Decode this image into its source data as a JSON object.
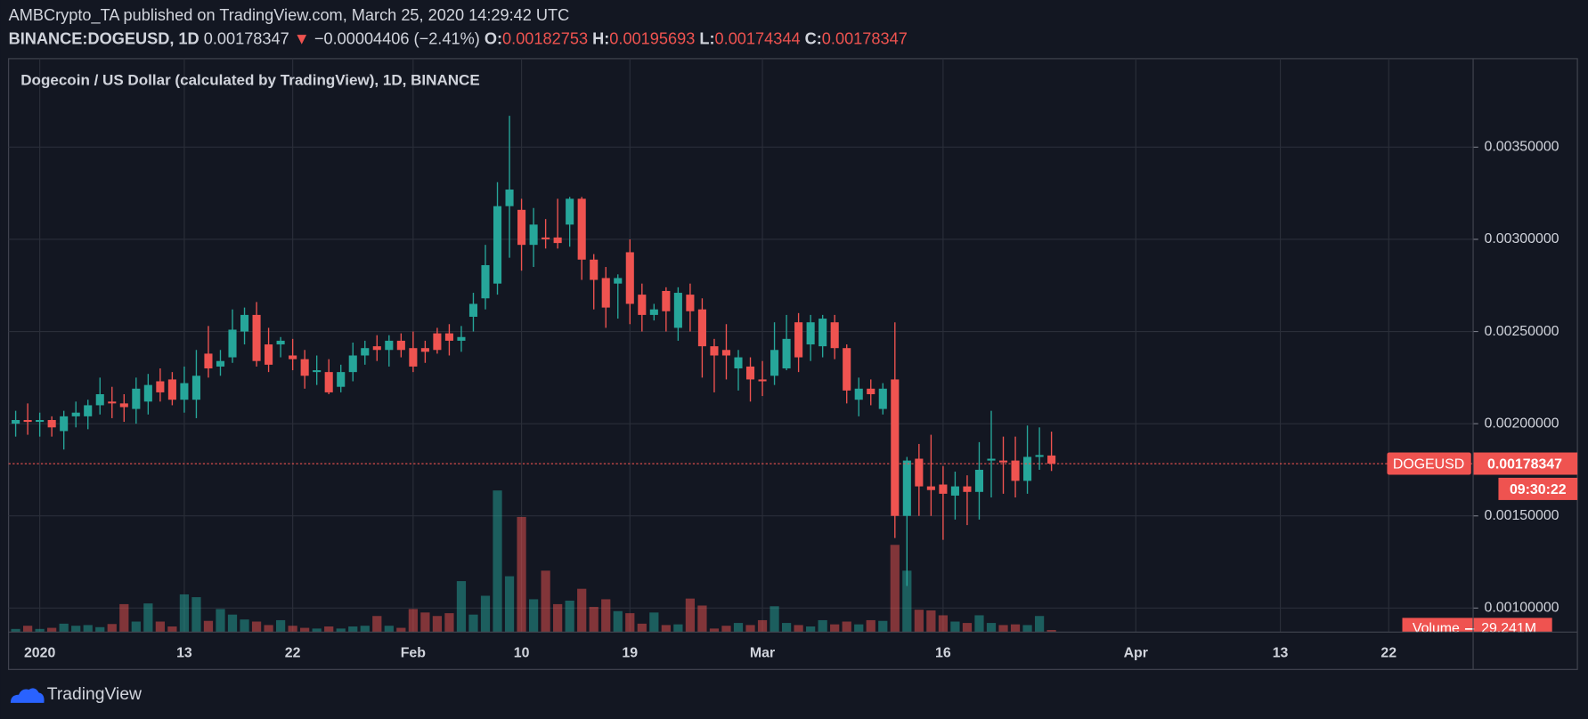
{
  "header": {
    "publisher": "AMBCrypto_TA published on TradingView.com, March 25, 2020 14:29:42 UTC",
    "symbol": "BINANCE:DOGEUSD, 1D",
    "arrow": "▼",
    "change": "−0.00004406 (−2.41%)",
    "o_label": "O:",
    "h_label": "H:",
    "l_label": "L:",
    "c_label": "C:"
  },
  "chart_data": {
    "type": "candlestick",
    "title": "Dogecoin / US Dollar (calculated by TradingView), 1D, BINANCE",
    "categories": [
      null,
      null,
      "2020",
      null,
      null,
      null,
      null,
      null,
      null,
      null,
      null,
      null,
      null,
      null,
      "13",
      null,
      null,
      null,
      null,
      null,
      null,
      null,
      null,
      "22",
      null,
      null,
      null,
      null,
      null,
      null,
      null,
      null,
      null,
      "Feb",
      null,
      null,
      null,
      null,
      null,
      null,
      null,
      null,
      "10",
      null,
      null,
      null,
      null,
      null,
      null,
      null,
      null,
      "19",
      null,
      null,
      null,
      null,
      null,
      null,
      null,
      null,
      null,
      null,
      "Mar",
      null,
      null,
      null,
      null,
      null,
      null,
      null,
      null,
      null,
      null,
      null,
      null,
      null,
      null,
      "16",
      null,
      null,
      null,
      null,
      null,
      null,
      null,
      null,
      null,
      null,
      null,
      null,
      null,
      null,
      null,
      "Apr",
      null,
      null,
      null,
      null,
      null,
      null,
      null,
      null,
      null,
      null,
      null,
      "13",
      null,
      null,
      null,
      null,
      null,
      null,
      null,
      null,
      "22",
      null,
      null,
      null,
      null,
      null,
      null
    ],
    "open": [
      0.002,
      0.00202,
      0.00201,
      0.00202,
      0.00196,
      0.00204,
      0.00204,
      0.0021,
      0.00212,
      0.00211,
      0.00208,
      0.00212,
      0.00223,
      0.00224,
      0.00213,
      0.00213,
      0.00238,
      0.00231,
      0.00236,
      0.0025,
      0.00259,
      0.00243,
      0.00243,
      0.00237,
      0.00235,
      0.00228,
      0.00228,
      0.0022,
      0.00228,
      0.00237,
      0.00242,
      0.0024,
      0.00245,
      0.00241,
      0.00241,
      0.00249,
      0.00249,
      0.00245,
      0.00258,
      0.00268,
      0.00276,
      0.00318,
      0.00316,
      0.00297,
      0.00301,
      0.00301,
      0.00308,
      0.00322,
      0.00289,
      0.00279,
      0.00276,
      0.00293,
      0.0027,
      0.00259,
      0.00272,
      0.00252,
      0.0027,
      0.00262,
      0.00242,
      0.0024,
      0.0023,
      0.00231,
      0.00224,
      0.00226,
      0.0023,
      0.00255,
      0.00243,
      0.00242,
      0.00255,
      0.00241,
      0.00213,
      0.00219,
      0.00208,
      0.00224,
      0.0015,
      0.00181,
      0.00166,
      0.00167,
      0.00161,
      0.00166,
      0.00163,
      0.0018,
      0.0018,
      0.0018,
      0.00169,
      0.00182,
      0.00182753,
      null,
      null,
      null,
      null,
      null,
      null,
      null,
      null,
      null,
      null,
      null,
      null,
      null,
      null,
      null,
      null,
      null,
      null,
      null,
      null,
      null,
      null,
      null,
      null,
      null,
      null,
      null,
      null,
      null,
      null,
      null,
      null,
      null,
      null
    ],
    "high": [
      0.00207,
      0.00211,
      0.00206,
      0.00204,
      0.00207,
      0.00212,
      0.00213,
      0.00225,
      0.0022,
      0.00216,
      0.00225,
      0.00227,
      0.0023,
      0.00228,
      0.00231,
      0.0024,
      0.00253,
      0.0024,
      0.00262,
      0.00263,
      0.00266,
      0.00252,
      0.00247,
      0.00246,
      0.0024,
      0.00237,
      0.00235,
      0.00232,
      0.00244,
      0.00245,
      0.00248,
      0.00248,
      0.00249,
      0.0025,
      0.00245,
      0.00252,
      0.00254,
      0.00253,
      0.00271,
      0.00297,
      0.00331,
      0.00367,
      0.00322,
      0.00317,
      0.00311,
      0.00322,
      0.00323,
      0.00323,
      0.00292,
      0.00285,
      0.00281,
      0.003,
      0.00276,
      0.00265,
      0.00274,
      0.00274,
      0.00276,
      0.00268,
      0.00246,
      0.00254,
      0.0024,
      0.00236,
      0.00234,
      0.00255,
      0.00259,
      0.0026,
      0.00259,
      0.00259,
      0.00259,
      0.00243,
      0.00225,
      0.00224,
      0.00222,
      0.00255,
      0.00182,
      0.00189,
      0.00194,
      0.00177,
      0.00174,
      0.00172,
      0.0019,
      0.00207,
      0.00193,
      0.00193,
      0.00199,
      0.00198,
      0.00195693,
      null,
      null,
      null,
      null,
      null,
      null,
      null,
      null,
      null,
      null,
      null,
      null,
      null,
      null,
      null,
      null,
      null,
      null,
      null,
      null,
      null,
      null,
      null,
      null,
      null,
      null,
      null,
      null,
      null,
      null,
      null,
      null,
      null,
      null
    ],
    "low": [
      0.00193,
      0.00194,
      0.00193,
      0.00193,
      0.00186,
      0.00198,
      0.00197,
      0.00205,
      0.00203,
      0.00201,
      0.002,
      0.00205,
      0.00212,
      0.0021,
      0.00206,
      0.00203,
      0.00225,
      0.00226,
      0.00233,
      0.00243,
      0.00231,
      0.00228,
      0.00236,
      0.00229,
      0.00219,
      0.00221,
      0.00216,
      0.00217,
      0.00223,
      0.00232,
      0.00234,
      0.00231,
      0.00236,
      0.00228,
      0.00233,
      0.00238,
      0.00237,
      0.00239,
      0.0025,
      0.00262,
      0.0027,
      0.0029,
      0.00283,
      0.00285,
      0.00295,
      0.00295,
      0.00296,
      0.00278,
      0.00262,
      0.00252,
      0.00257,
      0.00254,
      0.0025,
      0.00256,
      0.0025,
      0.00245,
      0.0025,
      0.00225,
      0.00217,
      0.00224,
      0.00218,
      0.00212,
      0.00215,
      0.00221,
      0.00229,
      0.00228,
      0.00234,
      0.00236,
      0.00235,
      0.00211,
      0.00204,
      0.0021,
      0.00205,
      0.00138,
      0.00112,
      0.0015,
      0.0015,
      0.00137,
      0.00148,
      0.00145,
      0.00148,
      0.0016,
      0.00162,
      0.0016,
      0.00162,
      0.00175,
      0.00174344,
      null,
      null,
      null,
      null,
      null,
      null,
      null,
      null,
      null,
      null,
      null,
      null,
      null,
      null,
      null,
      null,
      null,
      null,
      null,
      null,
      null,
      null,
      null,
      null,
      null,
      null,
      null,
      null,
      null,
      null,
      null,
      null,
      null,
      null
    ],
    "close": [
      0.00202,
      0.00201,
      0.00202,
      0.00198,
      0.00204,
      0.00206,
      0.0021,
      0.00216,
      0.00211,
      0.00209,
      0.00219,
      0.00221,
      0.00217,
      0.00213,
      0.00222,
      0.00226,
      0.0023,
      0.00234,
      0.00251,
      0.00259,
      0.00234,
      0.00232,
      0.00245,
      0.00235,
      0.00226,
      0.00229,
      0.00217,
      0.00228,
      0.00237,
      0.00241,
      0.0024,
      0.00245,
      0.0024,
      0.00231,
      0.00239,
      0.0024,
      0.00245,
      0.00247,
      0.00265,
      0.00286,
      0.00318,
      0.00327,
      0.00297,
      0.00308,
      0.003,
      0.00298,
      0.00322,
      0.00289,
      0.00278,
      0.00263,
      0.00279,
      0.00265,
      0.00259,
      0.00262,
      0.00261,
      0.00271,
      0.00261,
      0.00242,
      0.00237,
      0.00237,
      0.00236,
      0.00224,
      0.00223,
      0.0024,
      0.00246,
      0.00236,
      0.00255,
      0.00257,
      0.00241,
      0.00218,
      0.00219,
      0.00216,
      0.00219,
      0.0015,
      0.0018,
      0.00166,
      0.00164,
      0.00162,
      0.00166,
      0.00163,
      0.00175,
      0.00181,
      0.00179,
      0.00169,
      0.00182,
      0.00183,
      0.00178347,
      null,
      null,
      null,
      null,
      null,
      null,
      null,
      null,
      null,
      null,
      null,
      null,
      null,
      null,
      null,
      null,
      null,
      null,
      null,
      null,
      null,
      null,
      null,
      null,
      null,
      null,
      null,
      null,
      null,
      null,
      null,
      null,
      null,
      null
    ],
    "volume": [
      44,
      90,
      44,
      60,
      120,
      90,
      100,
      70,
      115,
      400,
      150,
      410,
      150,
      80,
      540,
      500,
      160,
      330,
      250,
      180,
      150,
      100,
      170,
      90,
      60,
      50,
      80,
      50,
      80,
      90,
      230,
      90,
      60,
      330,
      280,
      230,
      270,
      730,
      250,
      520,
      2030,
      800,
      1650,
      470,
      880,
      400,
      450,
      620,
      360,
      470,
      300,
      270,
      120,
      280,
      100,
      110,
      480,
      380,
      50,
      90,
      130,
      100,
      170,
      370,
      130,
      100,
      80,
      170,
      110,
      150,
      110,
      170,
      160,
      1250,
      880,
      320,
      310,
      240,
      150,
      130,
      240,
      130,
      100,
      110,
      100,
      230,
      29.241,
      null,
      null,
      null,
      null,
      null,
      null,
      null,
      null,
      null,
      null,
      null,
      null,
      null,
      null,
      null,
      null,
      null,
      null,
      null,
      null,
      null,
      null,
      null,
      null,
      null,
      null,
      null,
      null,
      null,
      null,
      null,
      null,
      null,
      null
    ],
    "volume_name": "Volume",
    "volume_label": "29.241M",
    "symbol_label": "DOGEUSD",
    "countdown": "09:30:22",
    "up_color": "#26a69a",
    "down_color": "#ef5350",
    "ylim": [
      0.00087,
      0.00398
    ],
    "yticks": [
      {
        "value": 0.001,
        "label": "0.00100000"
      },
      {
        "value": 0.0015,
        "label": "0.00150000"
      },
      {
        "value": 0.002,
        "label": "0.00200000"
      },
      {
        "value": 0.0025,
        "label": "0.00250000"
      },
      {
        "value": 0.003,
        "label": "0.00300000"
      },
      {
        "value": 0.0035,
        "label": "0.00350000"
      }
    ],
    "grid": true
  },
  "footer": {
    "brand": "TradingView"
  }
}
